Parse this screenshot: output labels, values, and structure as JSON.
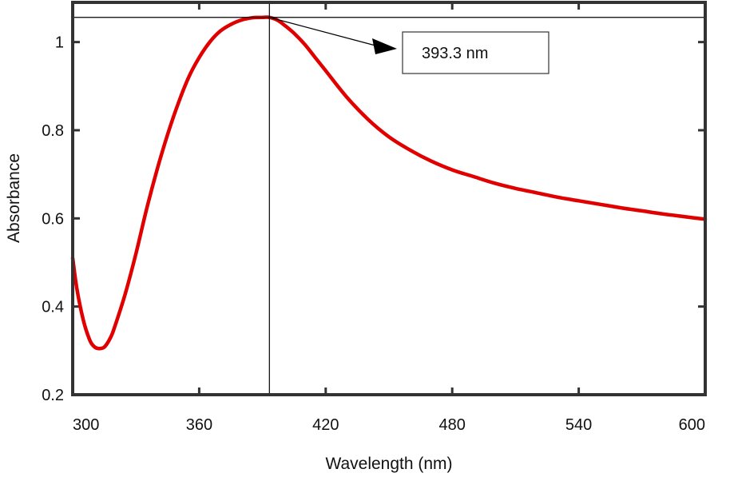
{
  "chart_data": {
    "type": "line",
    "title": "",
    "xlabel": "Wavelength (nm)",
    "ylabel": "Absorbance",
    "xlim": [
      300,
      600
    ],
    "ylim": [
      0.2,
      1.09
    ],
    "xticks": [
      300,
      360,
      420,
      480,
      540,
      600
    ],
    "yticks": [
      0.2,
      0.4,
      0.6,
      0.8,
      1
    ],
    "ytick_labels": [
      "0.2",
      "0.4",
      "0.6",
      "0.8",
      "1"
    ],
    "grid": false,
    "legend": "none",
    "series": [
      {
        "color": "#e00000",
        "x": [
          300,
          302,
          305,
          308,
          310,
          312,
          315,
          318,
          320,
          325,
          330,
          335,
          340,
          345,
          350,
          355,
          360,
          365,
          370,
          375,
          380,
          385,
          390,
          393.3,
          397,
          400,
          405,
          410,
          415,
          420,
          430,
          440,
          450,
          460,
          470,
          480,
          490,
          500,
          510,
          520,
          530,
          540,
          550,
          560,
          570,
          580,
          590,
          600
        ],
        "y": [
          0.51,
          0.44,
          0.37,
          0.325,
          0.31,
          0.305,
          0.308,
          0.33,
          0.355,
          0.43,
          0.52,
          0.62,
          0.71,
          0.79,
          0.86,
          0.92,
          0.965,
          1.0,
          1.025,
          1.04,
          1.05,
          1.055,
          1.056,
          1.056,
          1.05,
          1.04,
          1.02,
          0.995,
          0.965,
          0.935,
          0.875,
          0.825,
          0.785,
          0.755,
          0.73,
          0.71,
          0.695,
          0.68,
          0.668,
          0.658,
          0.648,
          0.64,
          0.632,
          0.624,
          0.617,
          0.61,
          0.604,
          0.598
        ]
      }
    ],
    "annotation": {
      "text": "393.3 nm",
      "x": 393.3,
      "y": 1.056,
      "crosshair_color": "#000000"
    }
  }
}
